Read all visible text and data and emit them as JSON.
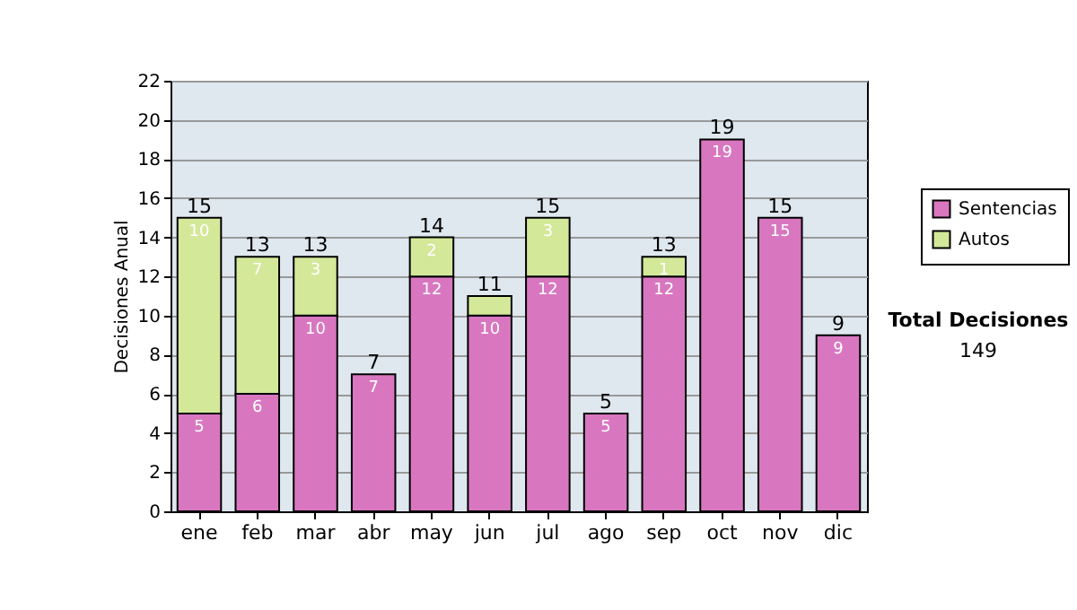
{
  "chart_data": {
    "type": "bar",
    "stacked": true,
    "ylabel": "Decisiones Anual",
    "categories": [
      "ene",
      "feb",
      "mar",
      "abr",
      "may",
      "jun",
      "jul",
      "ago",
      "sep",
      "oct",
      "nov",
      "dic"
    ],
    "series": [
      {
        "name": "Sentencias",
        "color": "#d877c0",
        "values": [
          5,
          6,
          10,
          7,
          12,
          10,
          12,
          5,
          12,
          19,
          15,
          9
        ],
        "value_labels": [
          "5",
          "6",
          "10",
          "7",
          "12",
          "10",
          "12",
          "5",
          "12",
          "19",
          "15",
          "9"
        ]
      },
      {
        "name": "Autos",
        "color": "#d4e89a",
        "values": [
          10,
          7,
          3,
          null,
          2,
          1,
          3,
          null,
          1,
          null,
          null,
          null
        ],
        "value_labels": [
          "10",
          "7",
          "3",
          null,
          "2",
          null,
          "3",
          null,
          "1",
          null,
          null,
          null
        ]
      }
    ],
    "totals": [
      "15",
      "13",
      "13",
      "7",
      "14",
      "11",
      "15",
      "5",
      "13",
      "19",
      "15",
      "9"
    ],
    "ylim": [
      0,
      22
    ],
    "yticks": [
      0,
      2,
      4,
      6,
      8,
      10,
      12,
      14,
      16,
      18,
      20,
      22
    ],
    "grid": "y",
    "legend": "right",
    "annotations": [
      "Total Decisiones",
      "149"
    ]
  }
}
